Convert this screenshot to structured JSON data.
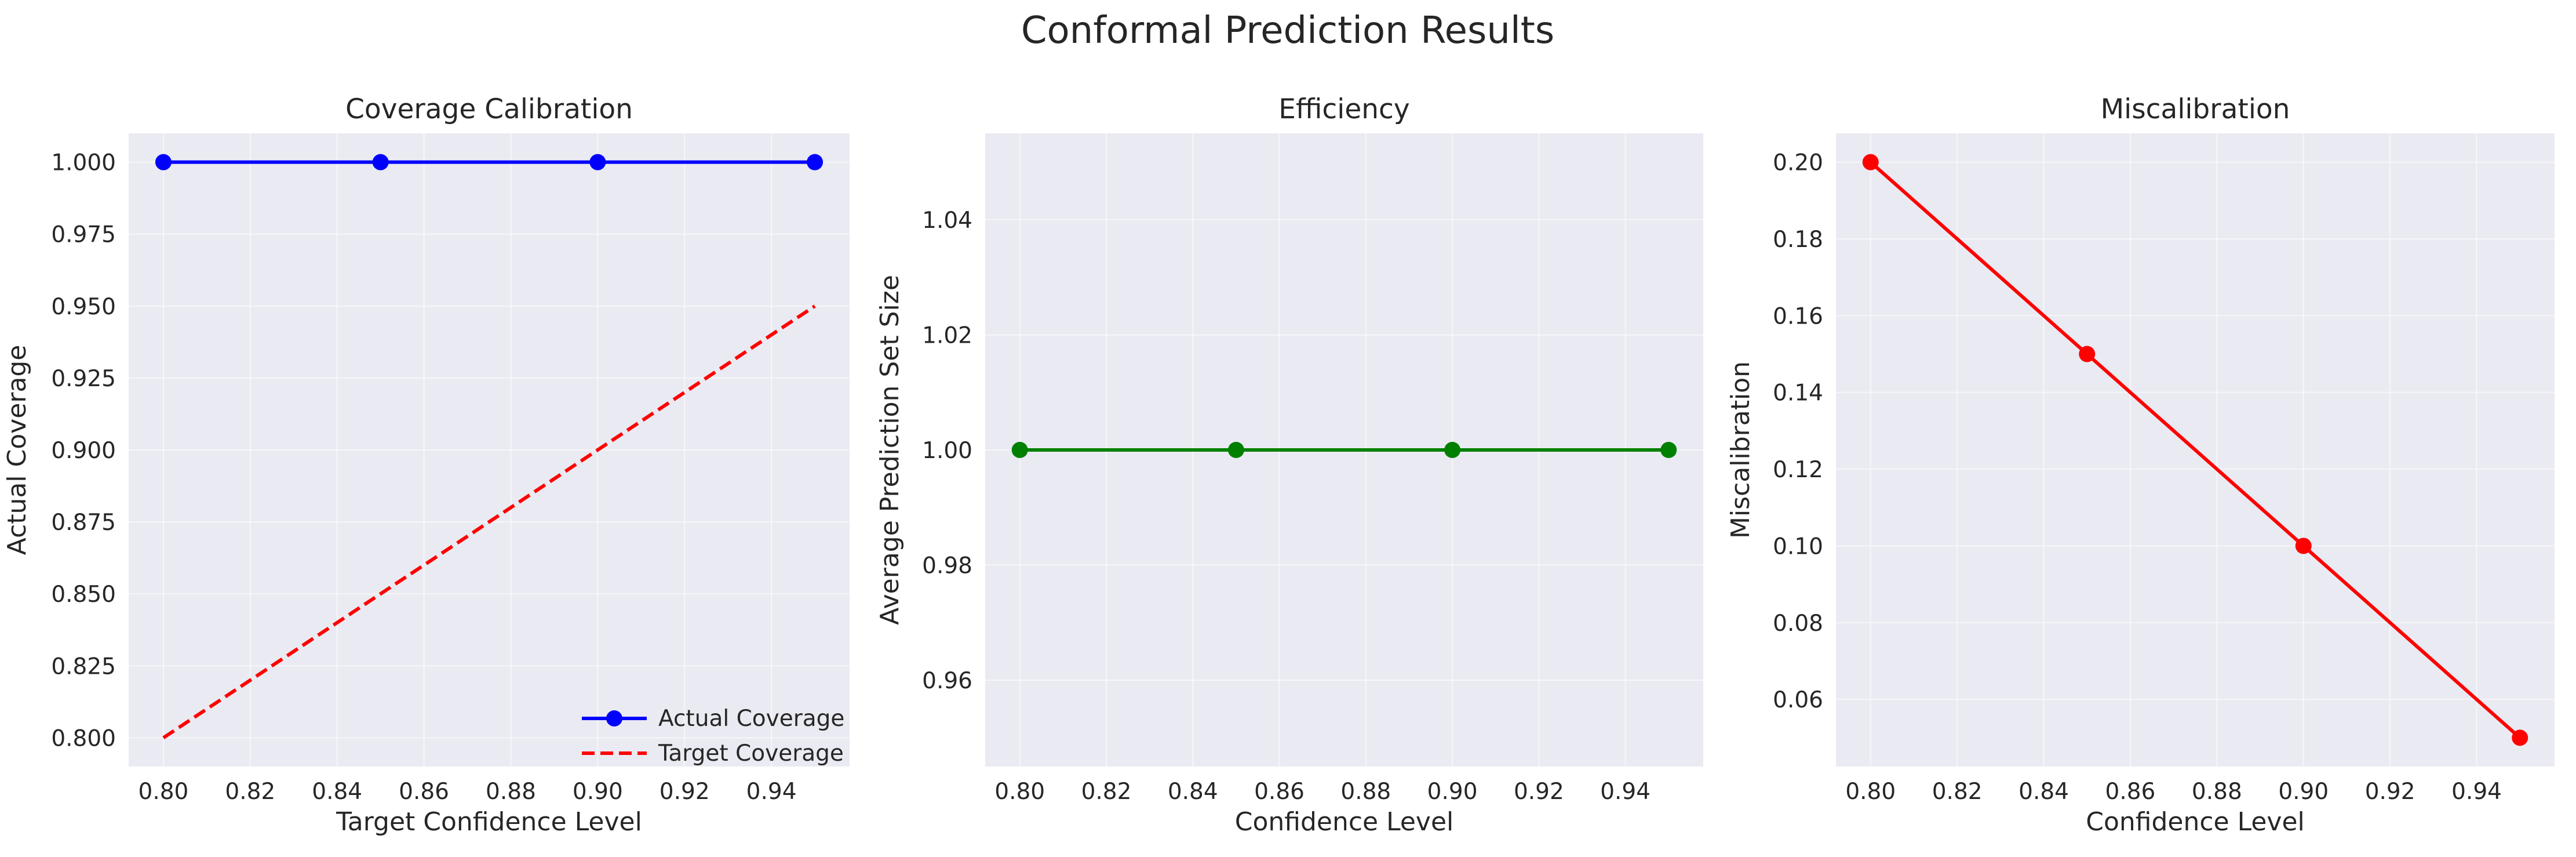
{
  "figure": {
    "title": "Conformal Prediction Results"
  },
  "chart_data": [
    {
      "type": "line",
      "title": "Coverage Calibration",
      "xlabel": "Target Confidence Level",
      "ylabel": "Actual Coverage",
      "xlim": [
        0.792,
        0.958
      ],
      "ylim": [
        0.79,
        1.01
      ],
      "xticks": [
        "0.80",
        "0.82",
        "0.84",
        "0.86",
        "0.88",
        "0.90",
        "0.92",
        "0.94"
      ],
      "yticks": [
        "0.800",
        "0.825",
        "0.850",
        "0.875",
        "0.900",
        "0.925",
        "0.950",
        "0.975",
        "1.000"
      ],
      "grid": true,
      "legend": "lower-right",
      "x": [
        0.8,
        0.85,
        0.9,
        0.95
      ],
      "series": [
        {
          "name": "Actual Coverage",
          "values": [
            1.0,
            1.0,
            1.0,
            1.0
          ],
          "color": "#0000ff",
          "style": "solid",
          "marker": "circle"
        },
        {
          "name": "Target Coverage",
          "values": [
            0.8,
            0.85,
            0.9,
            0.95
          ],
          "color": "#ff0000",
          "style": "dashed",
          "marker": "none"
        }
      ]
    },
    {
      "type": "line",
      "title": "Efficiency",
      "xlabel": "Confidence Level",
      "ylabel": "Average Prediction Set Size",
      "xlim": [
        0.792,
        0.958
      ],
      "ylim": [
        0.945,
        1.055
      ],
      "xticks": [
        "0.80",
        "0.82",
        "0.84",
        "0.86",
        "0.88",
        "0.90",
        "0.92",
        "0.94"
      ],
      "yticks": [
        "0.96",
        "0.98",
        "1.00",
        "1.02",
        "1.04"
      ],
      "grid": true,
      "x": [
        0.8,
        0.85,
        0.9,
        0.95
      ],
      "series": [
        {
          "values": [
            1.0,
            1.0,
            1.0,
            1.0
          ],
          "color": "#008000",
          "style": "solid",
          "marker": "circle"
        }
      ]
    },
    {
      "type": "line",
      "title": "Miscalibration",
      "xlabel": "Confidence Level",
      "ylabel": "Miscalibration",
      "xlim": [
        0.792,
        0.958
      ],
      "ylim": [
        0.0425,
        0.2075
      ],
      "xticks": [
        "0.80",
        "0.82",
        "0.84",
        "0.86",
        "0.88",
        "0.90",
        "0.92",
        "0.94"
      ],
      "yticks": [
        "0.06",
        "0.08",
        "0.10",
        "0.12",
        "0.14",
        "0.16",
        "0.18",
        "0.20"
      ],
      "grid": true,
      "x": [
        0.8,
        0.85,
        0.9,
        0.95
      ],
      "series": [
        {
          "values": [
            0.2,
            0.15,
            0.1,
            0.05
          ],
          "color": "#ff0000",
          "style": "solid",
          "marker": "circle"
        }
      ]
    }
  ]
}
